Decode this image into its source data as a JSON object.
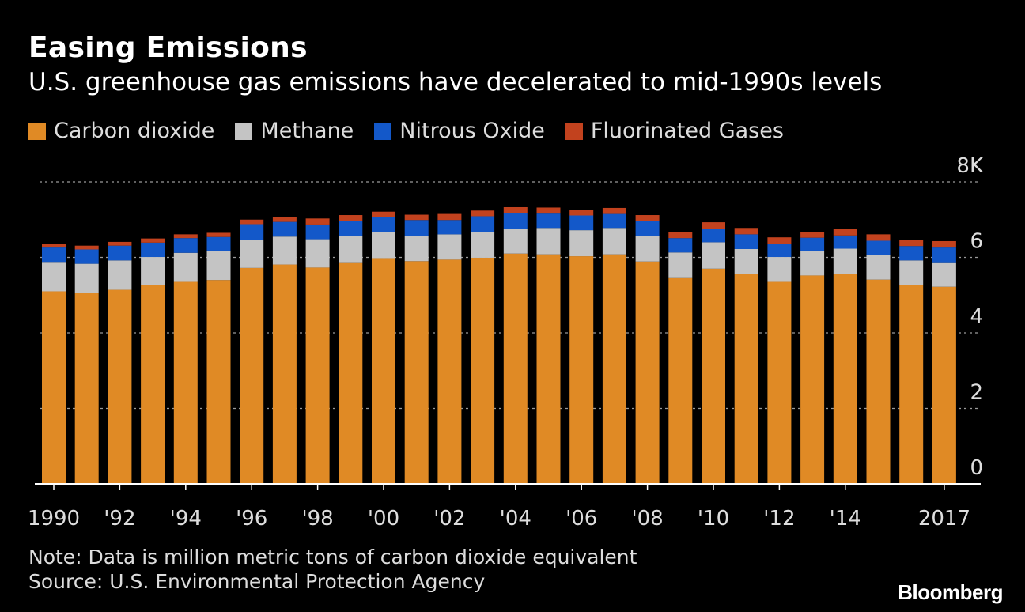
{
  "title": "Easing Emissions",
  "subtitle": "U.S. greenhouse gas emissions have decelerated to mid-1990s levels",
  "legend": [
    {
      "label": "Carbon dioxide",
      "color": "#e08a25"
    },
    {
      "label": "Methane",
      "color": "#c4c4c4"
    },
    {
      "label": "Nitrous Oxide",
      "color": "#1358c9"
    },
    {
      "label": "Fluorinated Gases",
      "color": "#c2421e"
    }
  ],
  "note": "Note: Data is million metric tons of carbon dioxide equivalent",
  "source": "Source: U.S. Environmental Protection Agency",
  "brand": "Bloomberg",
  "chart_data": {
    "type": "bar",
    "stacked": true,
    "categories": [
      "1990",
      "1991",
      "1992",
      "1993",
      "1994",
      "1995",
      "1996",
      "1997",
      "1998",
      "1999",
      "2000",
      "2001",
      "2002",
      "2003",
      "2004",
      "2005",
      "2006",
      "2007",
      "2008",
      "2009",
      "2010",
      "2011",
      "2012",
      "2013",
      "2014",
      "2015",
      "2016",
      "2017"
    ],
    "x_tick_labels": [
      "1990",
      "",
      "'92",
      "",
      "'94",
      "",
      "'96",
      "",
      "'98",
      "",
      "'00",
      "",
      "'02",
      "",
      "'04",
      "",
      "'06",
      "",
      "'08",
      "",
      "'10",
      "",
      "'12",
      "",
      "'14",
      "",
      "",
      "2017"
    ],
    "series": [
      {
        "name": "Carbon dioxide",
        "color": "#e08a25",
        "values": [
          5.1,
          5.06,
          5.14,
          5.26,
          5.35,
          5.4,
          5.72,
          5.81,
          5.73,
          5.87,
          5.98,
          5.9,
          5.94,
          5.99,
          6.1,
          6.08,
          6.03,
          6.08,
          5.89,
          5.47,
          5.7,
          5.56,
          5.35,
          5.52,
          5.57,
          5.41,
          5.26,
          5.22
        ]
      },
      {
        "name": "Methane",
        "color": "#c4c4c4",
        "values": [
          0.78,
          0.77,
          0.78,
          0.75,
          0.77,
          0.76,
          0.74,
          0.74,
          0.75,
          0.7,
          0.7,
          0.67,
          0.67,
          0.67,
          0.65,
          0.7,
          0.69,
          0.7,
          0.68,
          0.66,
          0.7,
          0.66,
          0.66,
          0.64,
          0.66,
          0.66,
          0.66,
          0.65
        ]
      },
      {
        "name": "Nitrous Oxide",
        "color": "#1358c9",
        "values": [
          0.38,
          0.38,
          0.39,
          0.38,
          0.39,
          0.38,
          0.42,
          0.39,
          0.39,
          0.39,
          0.38,
          0.42,
          0.38,
          0.43,
          0.42,
          0.38,
          0.39,
          0.37,
          0.39,
          0.38,
          0.36,
          0.39,
          0.35,
          0.36,
          0.35,
          0.37,
          0.38,
          0.39
        ]
      },
      {
        "name": "Fluorinated Gases",
        "color": "#c2421e",
        "values": [
          0.1,
          0.1,
          0.1,
          0.11,
          0.1,
          0.11,
          0.12,
          0.13,
          0.16,
          0.16,
          0.15,
          0.14,
          0.16,
          0.15,
          0.16,
          0.16,
          0.15,
          0.16,
          0.16,
          0.16,
          0.17,
          0.17,
          0.17,
          0.16,
          0.17,
          0.17,
          0.17,
          0.17
        ]
      }
    ],
    "y_ticks": [
      "0",
      "2",
      "4",
      "6",
      "8K"
    ],
    "ylim": [
      0,
      8
    ],
    "grid": "dotted horizontal",
    "legend_position": "top-left"
  }
}
